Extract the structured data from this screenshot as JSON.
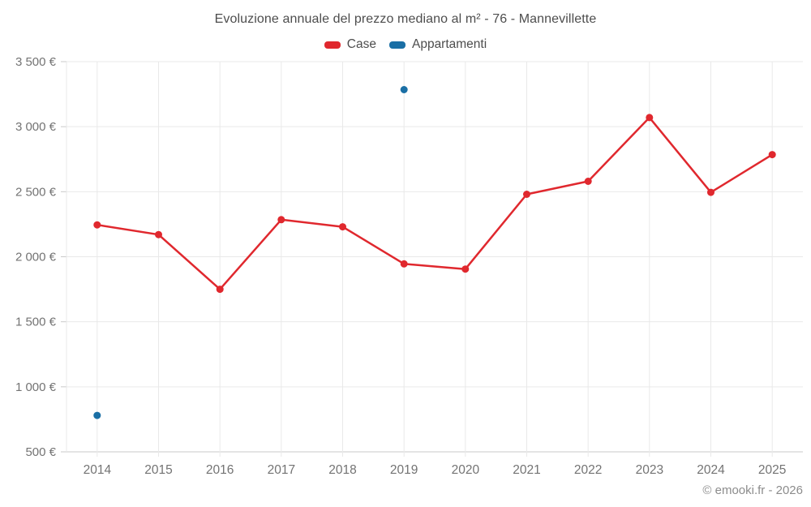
{
  "header": {
    "title": "Evoluzione annuale del prezzo mediano al m² - 76 - Mannevillette"
  },
  "footer": {
    "credit": "© emooki.fr - 2026"
  },
  "colors": {
    "case_red": "#e0282e",
    "appartamenti_blue": "#1a6fa5",
    "grid": "#e9e9e9",
    "axis": "#c9c9c9",
    "axis_text": "#737373",
    "title_text": "#4d4d4d",
    "credit_text": "#8c8c8c"
  },
  "chart_data": {
    "type": "line",
    "title": "Evoluzione annuale del prezzo mediano al m² - 76 - Mannevillette",
    "xlabel": "",
    "ylabel": "",
    "categories": [
      2014,
      2015,
      2016,
      2017,
      2018,
      2019,
      2020,
      2021,
      2022,
      2023,
      2024,
      2025
    ],
    "series": [
      {
        "name": "Case",
        "color": "#e0282e",
        "line": true,
        "values": [
          2245,
          2170,
          1750,
          2285,
          2230,
          1945,
          1905,
          2480,
          2580,
          3070,
          2495,
          2785
        ]
      },
      {
        "name": "Appartamenti",
        "color": "#1a6fa5",
        "line": false,
        "values": [
          780,
          null,
          null,
          null,
          null,
          3285,
          null,
          null,
          null,
          null,
          null,
          null
        ]
      }
    ],
    "ylim": [
      500,
      3500
    ],
    "ytick_values": [
      500,
      1000,
      1500,
      2000,
      2500,
      3000,
      3500
    ],
    "ytick_labels": [
      "500 €",
      "1 000 €",
      "1 500 €",
      "2 000 €",
      "2 500 €",
      "3 000 €",
      "3 500 €"
    ],
    "ytick_suffix": " €",
    "grid": true,
    "legend_position": "top"
  }
}
